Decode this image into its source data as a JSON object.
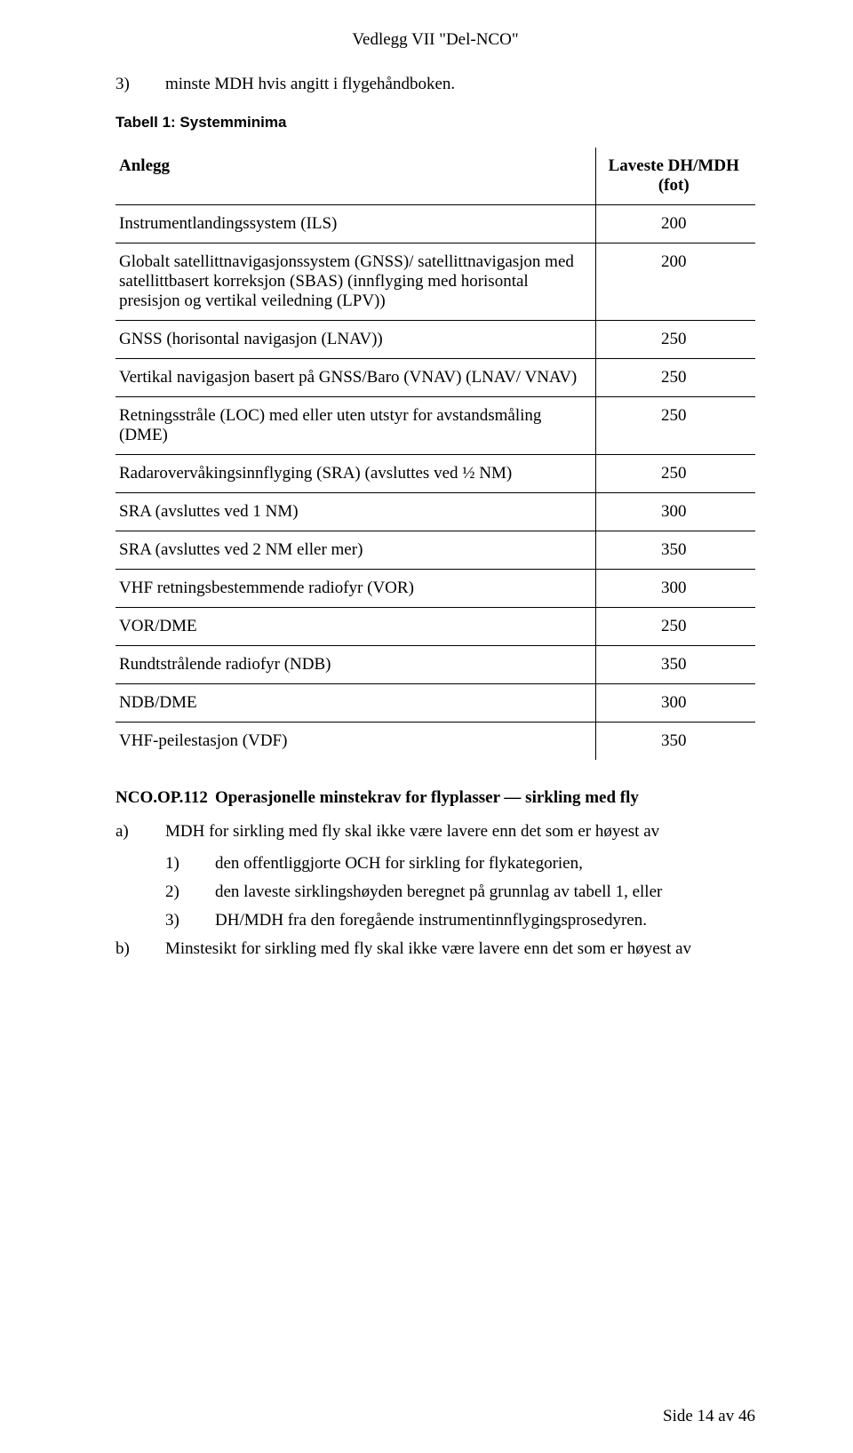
{
  "header": {
    "title": "Vedlegg VII \"Del-NCO\""
  },
  "intro": {
    "num": "3)",
    "text": "minste MDH hvis angitt i flygehåndboken."
  },
  "table": {
    "title": "Tabell 1: Systemminima",
    "col1": "Anlegg",
    "col2_line1": "Laveste DH/MDH",
    "col2_line2": "(fot)",
    "rows": [
      {
        "label": "Instrumentlandingssystem (ILS)",
        "value": "200"
      },
      {
        "label": "Globalt satellittnavigasjonssystem (GNSS)/ satellittnavigasjon med satellittbasert korreksjon (SBAS) (innflyging med horisontal presisjon og vertikal veiledning (LPV))",
        "value": "200"
      },
      {
        "label": "GNSS (horisontal navigasjon (LNAV))",
        "value": "250"
      },
      {
        "label": "Vertikal navigasjon basert på GNSS/Baro (VNAV) (LNAV/ VNAV)",
        "value": "250"
      },
      {
        "label": "Retningsstråle (LOC) med eller uten utstyr for avstandsmåling (DME)",
        "value": "250"
      },
      {
        "label": "Radarovervåkingsinnflyging (SRA) (avsluttes ved ½ NM)",
        "value": "250"
      },
      {
        "label": "SRA (avsluttes ved 1 NM)",
        "value": "300"
      },
      {
        "label": "SRA (avsluttes ved 2 NM eller mer)",
        "value": "350"
      },
      {
        "label": "VHF retningsbestemmende radiofyr (VOR)",
        "value": "300"
      },
      {
        "label": "VOR/DME",
        "value": "250"
      },
      {
        "label": "Rundtstrålende radiofyr (NDB)",
        "value": "350"
      },
      {
        "label": "NDB/DME",
        "value": "300"
      },
      {
        "label": "VHF-peilestasjon (VDF)",
        "value": "350"
      }
    ]
  },
  "section": {
    "code": "NCO.OP.112",
    "title": "Operasjonelle minstekrav for flyplasser — sirkling med fly",
    "items": [
      {
        "lbl": "a)",
        "text": "MDH for sirkling med fly skal ikke være lavere enn det som er høyest av",
        "subs": [
          {
            "lbl": "1)",
            "text": "den offentliggjorte OCH for sirkling for flykategorien,"
          },
          {
            "lbl": "2)",
            "text": "den laveste sirklingshøyden beregnet på grunnlag av tabell 1, eller"
          },
          {
            "lbl": "3)",
            "text": "DH/MDH fra den foregående instrumentinnflygingsprosedyren."
          }
        ]
      },
      {
        "lbl": "b)",
        "text": "Minstesikt for sirkling med fly skal ikke være lavere enn det som er høyest av",
        "subs": []
      }
    ]
  },
  "footer": {
    "text": "Side 14 av 46"
  },
  "style": {
    "text_color": "#000000",
    "background_color": "#ffffff",
    "border_color": "#000000",
    "body_fontsize_pt": 14,
    "table_title_font": "Verdana"
  }
}
